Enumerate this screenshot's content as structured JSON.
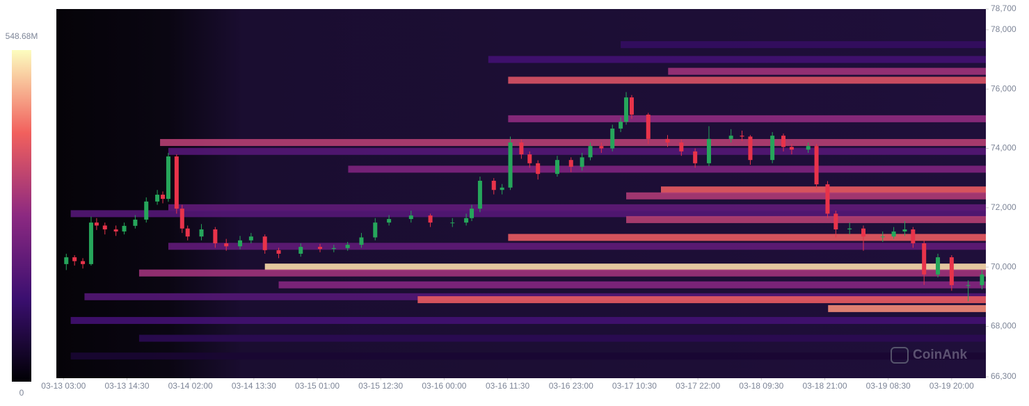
{
  "chart_data": {
    "type": "candlestick-heatmap",
    "watermark": "CoinAnk",
    "xlim": [
      -1.3,
      167.2
    ],
    "ylim": [
      66300,
      78700
    ],
    "xticks": [
      {
        "value": 0,
        "label": "03-13 03:00"
      },
      {
        "value": 11.5,
        "label": "03-13 14:30"
      },
      {
        "value": 23,
        "label": "03-14 02:00"
      },
      {
        "value": 34.5,
        "label": "03-14 13:30"
      },
      {
        "value": 46,
        "label": "03-15 01:00"
      },
      {
        "value": 57.5,
        "label": "03-15 12:30"
      },
      {
        "value": 69,
        "label": "03-16 00:00"
      },
      {
        "value": 80.5,
        "label": "03-16 11:30"
      },
      {
        "value": 92,
        "label": "03-16 23:00"
      },
      {
        "value": 103.5,
        "label": "03-17 10:30"
      },
      {
        "value": 115,
        "label": "03-17 22:00"
      },
      {
        "value": 126.5,
        "label": "03-18 09:30"
      },
      {
        "value": 138,
        "label": "03-18 21:00"
      },
      {
        "value": 149.5,
        "label": "03-19 08:30"
      },
      {
        "value": 161,
        "label": "03-19 20:00"
      }
    ],
    "yticks": [
      {
        "value": 66300,
        "label": "66,300"
      },
      {
        "value": 68000,
        "label": "68,000"
      },
      {
        "value": 70000,
        "label": "70,000"
      },
      {
        "value": 72000,
        "label": "72,000"
      },
      {
        "value": 74000,
        "label": "74,000"
      },
      {
        "value": 76000,
        "label": "76,000"
      },
      {
        "value": 78000,
        "label": "78,000"
      },
      {
        "value": 78700,
        "label": "78,700"
      }
    ],
    "clim": [
      0,
      548.68
    ],
    "cticks": [
      {
        "value": 548.68,
        "label": "548.68M"
      },
      0
    ],
    "up_color": "#26a65b",
    "down_color": "#e8334a",
    "candles": {
      "x": [
        0.5,
        2,
        3.5,
        5,
        6,
        7.5,
        9.5,
        11,
        13,
        15,
        17,
        18,
        19,
        20.5,
        21.5,
        22.5,
        25,
        27.5,
        29.5,
        32,
        34,
        36.5,
        39,
        43,
        46.5,
        49,
        51.5,
        54,
        56.5,
        59,
        63,
        66.5,
        70.5,
        73,
        74,
        75.5,
        78,
        79.5,
        81,
        83,
        84.5,
        86,
        89.5,
        92,
        94,
        95.5,
        97.5,
        99.5,
        101,
        102,
        103,
        106,
        109.5,
        112,
        114.5,
        117,
        121,
        123,
        124.5,
        128.5,
        130.5,
        132,
        135,
        136.5,
        138.5,
        140,
        142.5,
        145,
        148.5,
        150.5,
        152.5,
        154,
        156,
        158.5,
        161,
        164,
        166.5
      ],
      "open": [
        70100,
        70330,
        70200,
        70100,
        71500,
        71400,
        71270,
        71200,
        71390,
        71600,
        72210,
        72440,
        72300,
        73730,
        71970,
        71300,
        71030,
        71270,
        70800,
        70700,
        70900,
        71030,
        70570,
        70450,
        70680,
        70610,
        70640,
        70750,
        71000,
        71500,
        71620,
        71740,
        71500,
        71500,
        71650,
        71970,
        72910,
        72600,
        72680,
        74200,
        73800,
        73500,
        73140,
        73610,
        73380,
        73700,
        74080,
        74000,
        74670,
        74900,
        75720,
        75140,
        74320,
        74200,
        73900,
        73500,
        74320,
        74430,
        74400,
        73610,
        74430,
        74050,
        73960,
        74080,
        72790,
        71800,
        71270,
        71300,
        71030,
        71030,
        71200,
        71270,
        70800,
        69750,
        70330,
        69390,
        69390
      ],
      "high": [
        70450,
        70400,
        70300,
        71700,
        71650,
        71500,
        71400,
        71500,
        71750,
        72350,
        72600,
        72550,
        73850,
        73800,
        72100,
        71400,
        71450,
        71350,
        70950,
        71050,
        71150,
        71100,
        70650,
        70800,
        70780,
        70750,
        70850,
        71150,
        71650,
        71750,
        71900,
        71800,
        71650,
        71800,
        72100,
        73050,
        73000,
        72800,
        74400,
        74300,
        73900,
        73600,
        73750,
        73700,
        73850,
        74200,
        74200,
        74800,
        75050,
        75900,
        75800,
        75200,
        74450,
        74300,
        74000,
        74750,
        74650,
        74600,
        74450,
        74550,
        74500,
        74150,
        74200,
        74150,
        72900,
        71900,
        71500,
        71400,
        71200,
        71350,
        71550,
        71350,
        70900,
        70450,
        70400,
        69550,
        69900
      ],
      "low": [
        69900,
        70050,
        69950,
        70050,
        71250,
        71100,
        71050,
        71100,
        71300,
        71500,
        72100,
        72150,
        72200,
        71800,
        71150,
        70900,
        70900,
        70650,
        70550,
        70600,
        70800,
        70450,
        70300,
        70350,
        70500,
        70500,
        70550,
        70650,
        70900,
        71400,
        71500,
        71350,
        71350,
        71400,
        71550,
        71850,
        72450,
        72450,
        72600,
        73650,
        73350,
        72950,
        73050,
        73200,
        73250,
        73600,
        73850,
        73900,
        74550,
        74800,
        75000,
        74150,
        74050,
        73750,
        73350,
        73400,
        74200,
        74250,
        73450,
        73500,
        73900,
        73800,
        73850,
        72650,
        71650,
        71000,
        71100,
        70550,
        70850,
        70950,
        71050,
        70650,
        69400,
        69650,
        69200,
        68850,
        69250
      ],
      "close": [
        70330,
        70200,
        70100,
        71500,
        71400,
        71270,
        71200,
        71390,
        71600,
        72210,
        72440,
        72300,
        73730,
        71970,
        71300,
        71030,
        71270,
        70800,
        70700,
        70900,
        71030,
        70570,
        70450,
        70680,
        70610,
        70640,
        70750,
        71000,
        71500,
        71620,
        71740,
        71500,
        71500,
        71650,
        71970,
        72910,
        72600,
        72680,
        74200,
        73800,
        73500,
        73140,
        73610,
        73380,
        73700,
        74080,
        74000,
        74670,
        74900,
        75720,
        75140,
        74320,
        74200,
        73900,
        73500,
        74320,
        74430,
        74400,
        73610,
        74430,
        74050,
        73960,
        74080,
        72790,
        71800,
        71270,
        71300,
        71030,
        71030,
        71200,
        71270,
        70800,
        69750,
        70330,
        69390,
        69390,
        69750
      ]
    },
    "heatmap": {
      "levels": [
        77500,
        77000,
        76600,
        76300,
        75000,
        74200,
        73900,
        73300,
        72600,
        72400,
        72000,
        71800,
        71600,
        71000,
        70700,
        70000,
        69800,
        69400,
        69000,
        68900,
        68600,
        68200,
        67600,
        67000
      ],
      "start": [
        101,
        77,
        109.6,
        80.6,
        80.6,
        17.5,
        19,
        51.6,
        108.3,
        102,
        19,
        1.3,
        102,
        80.6,
        19,
        36.5,
        13.7,
        39,
        3.8,
        64.2,
        138.6,
        1.3,
        13.7,
        1.3
      ],
      "intensity": [
        120,
        150,
        300,
        380,
        280,
        330,
        180,
        250,
        400,
        320,
        200,
        180,
        330,
        400,
        200,
        520,
        300,
        260,
        180,
        400,
        450,
        150,
        100,
        60
      ]
    }
  }
}
